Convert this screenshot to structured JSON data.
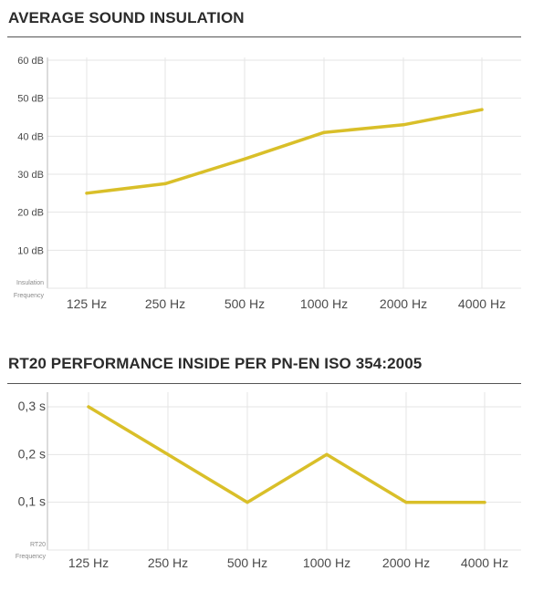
{
  "chart_data": [
    {
      "type": "line",
      "title": "AVERAGE SOUND INSULATION",
      "categories": [
        "125 Hz",
        "250 Hz",
        "500 Hz",
        "1000 Hz",
        "2000 Hz",
        "4000 Hz"
      ],
      "y_ticks": [
        "10 dB",
        "20 dB",
        "30 dB",
        "40 dB",
        "50 dB",
        "60 dB"
      ],
      "ylim": [
        0,
        60
      ],
      "yunit": "dB",
      "corner_labels": [
        "Insulation",
        "Frequency"
      ],
      "series": [
        {
          "values": [
            25,
            27.5,
            34,
            41,
            43,
            47
          ]
        }
      ],
      "grid": true,
      "color": "#d9bf29"
    },
    {
      "type": "line",
      "title": "RT20 PERFORMANCE INSIDE PER PN-EN ISO 354:2005",
      "categories": [
        "125 Hz",
        "250 Hz",
        "500 Hz",
        "1000 Hz",
        "2000 Hz",
        "4000 Hz"
      ],
      "y_ticks": [
        "0,1 s",
        "0,2 s",
        "0,3 s"
      ],
      "ylim": [
        0,
        0.3
      ],
      "yunit": "s",
      "corner_labels": [
        "RT20",
        "Frequency"
      ],
      "series": [
        {
          "values": [
            0.3,
            0.2,
            0.1,
            0.2,
            0.1,
            0.1
          ]
        }
      ],
      "grid": true,
      "color": "#d9bf29"
    }
  ]
}
